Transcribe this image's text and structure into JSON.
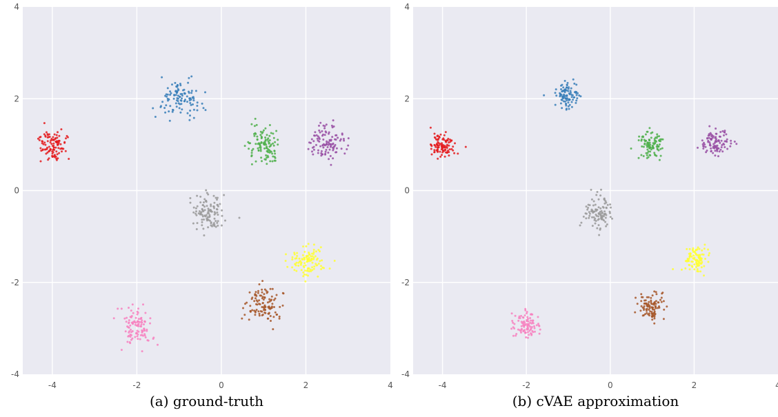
{
  "chart_data": [
    {
      "type": "scatter",
      "caption": "(a) ground-truth",
      "xlim": [
        -4.7,
        4.0
      ],
      "ylim": [
        -4,
        4
      ],
      "xticks": [
        -4,
        -2,
        0,
        2,
        4
      ],
      "yticks": [
        -4,
        -2,
        0,
        2,
        4
      ],
      "grid": true,
      "clusters": [
        {
          "name": "red",
          "color": "#e41a1c",
          "center": [
            -4.0,
            1.0
          ],
          "spread": [
            0.17,
            0.17
          ],
          "count": 110
        },
        {
          "name": "blue",
          "color": "#377eb8",
          "center": [
            -1.0,
            2.0
          ],
          "spread": [
            0.22,
            0.2
          ],
          "count": 110
        },
        {
          "name": "green",
          "color": "#4daf4a",
          "center": [
            1.0,
            0.95
          ],
          "spread": [
            0.2,
            0.22
          ],
          "count": 110
        },
        {
          "name": "purple",
          "color": "#984ea3",
          "center": [
            2.5,
            1.05
          ],
          "spread": [
            0.2,
            0.2
          ],
          "count": 110
        },
        {
          "name": "gray",
          "color": "#999999",
          "center": [
            -0.3,
            -0.5
          ],
          "spread": [
            0.2,
            0.2
          ],
          "count": 110
        },
        {
          "name": "yellow",
          "color": "#ffff33",
          "center": [
            2.05,
            -1.55
          ],
          "spread": [
            0.22,
            0.17
          ],
          "count": 110
        },
        {
          "name": "brown",
          "color": "#a65628",
          "center": [
            1.0,
            -2.5
          ],
          "spread": [
            0.2,
            0.2
          ],
          "count": 110
        },
        {
          "name": "pink",
          "color": "#f781bf",
          "center": [
            -2.0,
            -2.95
          ],
          "spread": [
            0.2,
            0.2
          ],
          "count": 110
        }
      ]
    },
    {
      "type": "scatter",
      "caption": "(b) cVAE approximation",
      "xlim": [
        -4.7,
        4.0
      ],
      "ylim": [
        -4,
        4
      ],
      "xticks": [
        -4,
        -2,
        0,
        2,
        4
      ],
      "yticks": [
        -4,
        -2,
        0,
        2,
        4
      ],
      "grid": true,
      "clusters": [
        {
          "name": "red",
          "color": "#e41a1c",
          "center": [
            -4.0,
            1.0
          ],
          "spread": [
            0.14,
            0.15
          ],
          "count": 100
        },
        {
          "name": "blue",
          "color": "#377eb8",
          "center": [
            -1.05,
            2.05
          ],
          "spread": [
            0.15,
            0.15
          ],
          "count": 100
        },
        {
          "name": "green",
          "color": "#4daf4a",
          "center": [
            1.0,
            1.0
          ],
          "spread": [
            0.17,
            0.16
          ],
          "count": 100
        },
        {
          "name": "purple",
          "color": "#984ea3",
          "center": [
            2.55,
            1.05
          ],
          "spread": [
            0.17,
            0.15
          ],
          "count": 100
        },
        {
          "name": "gray",
          "color": "#999999",
          "center": [
            -0.3,
            -0.5
          ],
          "spread": [
            0.17,
            0.17
          ],
          "count": 100
        },
        {
          "name": "yellow",
          "color": "#ffff33",
          "center": [
            2.05,
            -1.5
          ],
          "spread": [
            0.14,
            0.14
          ],
          "count": 100
        },
        {
          "name": "brown",
          "color": "#a65628",
          "center": [
            1.0,
            -2.5
          ],
          "spread": [
            0.16,
            0.15
          ],
          "count": 100
        },
        {
          "name": "pink",
          "color": "#f781bf",
          "center": [
            -2.0,
            -2.95
          ],
          "spread": [
            0.15,
            0.15
          ],
          "count": 100
        }
      ]
    }
  ]
}
